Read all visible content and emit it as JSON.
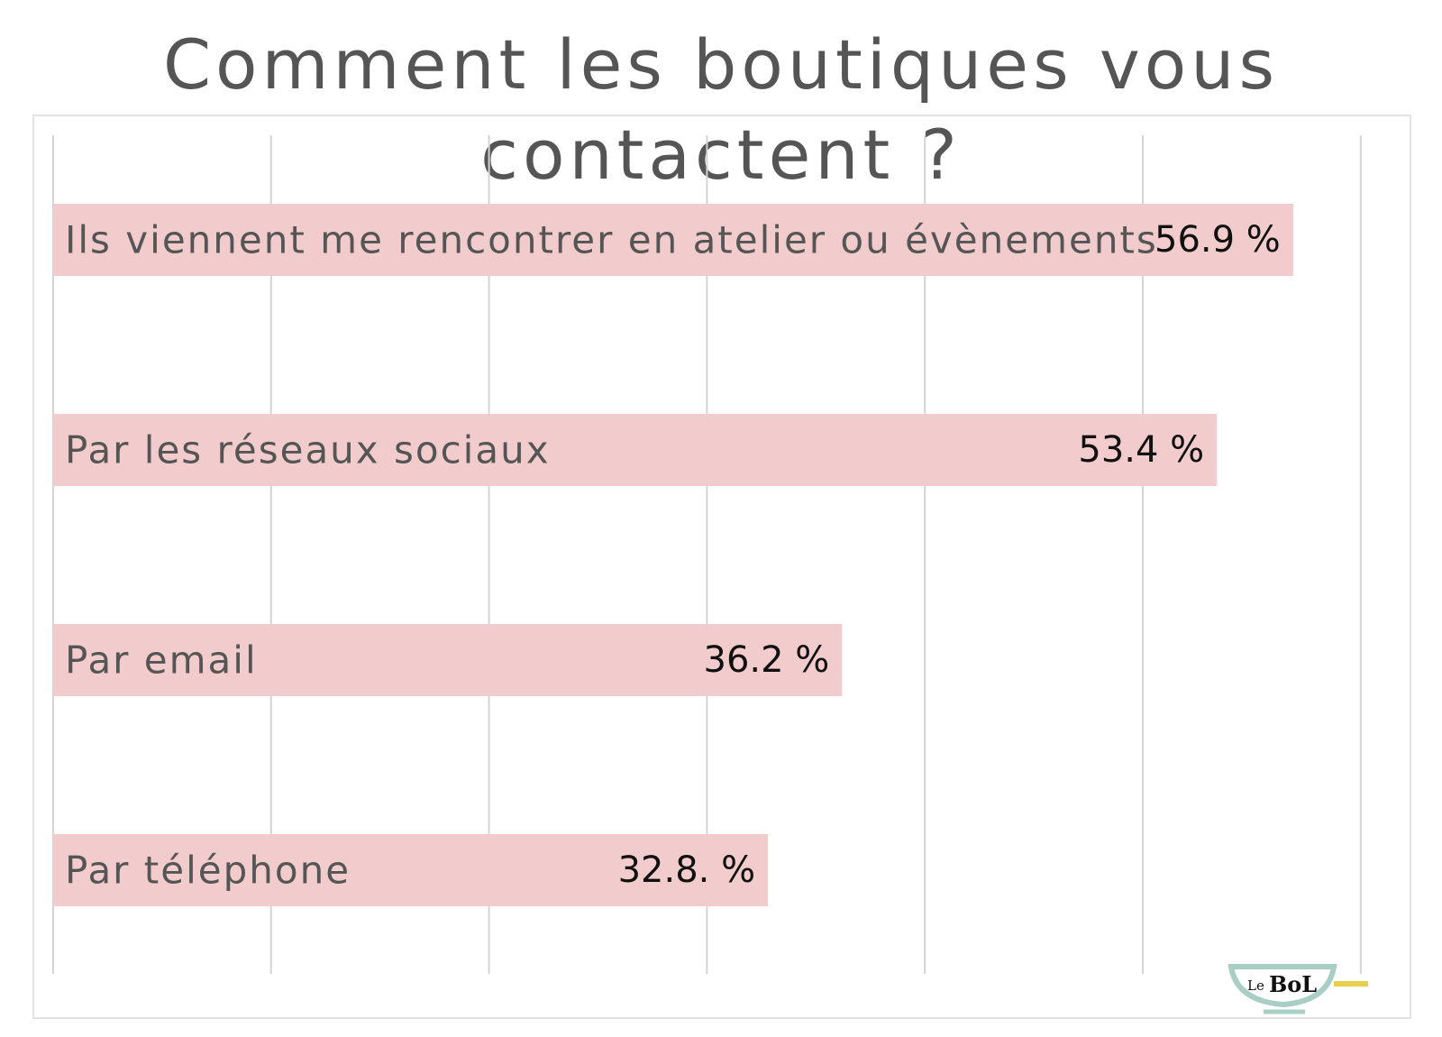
{
  "colors": {
    "bar": "#f2cbcc",
    "grid": "#d4d4d4",
    "label_text": "#555555",
    "value_text": "#111111",
    "logo_bowl": "#a9cfc4",
    "logo_handle": "#e8d04a",
    "logo_dot": "#3f7fb0"
  },
  "logo": {
    "text_le": "Le",
    "text_bol": "BoL"
  },
  "chart_data": {
    "type": "bar",
    "orientation": "horizontal",
    "title": "Comment les boutiques vous contactent ?",
    "xlabel": "",
    "ylabel": "",
    "xlim": [
      0,
      60
    ],
    "grid": true,
    "gridline_values": [
      0,
      10,
      20,
      30,
      40,
      50,
      60
    ],
    "categories": [
      "Ils viennent me rencontrer en atelier ou évènements",
      "Par les réseaux sociaux",
      "Par email",
      "Par téléphone"
    ],
    "values": [
      56.9,
      53.4,
      36.2,
      32.8
    ],
    "value_labels": [
      "56.9 %",
      "53.4 %",
      "36.2 %",
      "32.8. %"
    ]
  }
}
